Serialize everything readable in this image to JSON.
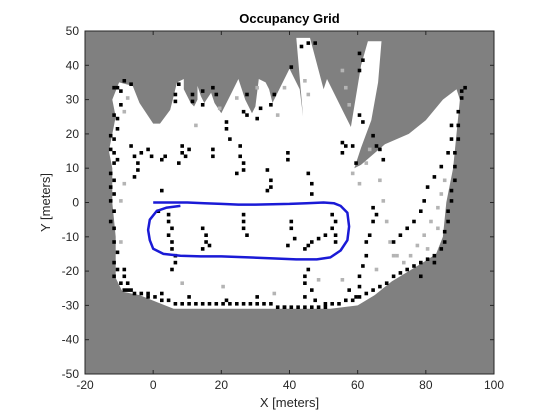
{
  "chart_data": {
    "type": "heatmap",
    "title": "Occupancy Grid",
    "xlabel": "X [meters]",
    "ylabel": "Y [meters]",
    "xlim": [
      -20,
      100
    ],
    "ylim": [
      -50,
      50
    ],
    "xticks": [
      -20,
      0,
      20,
      40,
      60,
      80,
      100
    ],
    "yticks": [
      -50,
      -40,
      -30,
      -20,
      -10,
      0,
      10,
      20,
      30,
      40,
      50
    ],
    "grid": false,
    "legend": "none",
    "colors": {
      "unknown": "#808080",
      "free": "#ffffff",
      "occupied": "#000000",
      "partial": "#b4b4b4",
      "path": "#1a1ad6",
      "axis": "#262626"
    },
    "free_space_boundary": [
      [
        -10,
        35
      ],
      [
        -6,
        34
      ],
      [
        -4,
        29
      ],
      [
        -2,
        26
      ],
      [
        0,
        23
      ],
      [
        2,
        23
      ],
      [
        5,
        27
      ],
      [
        6,
        31
      ],
      [
        7,
        35
      ],
      [
        9,
        36
      ],
      [
        9,
        33
      ],
      [
        11,
        29
      ],
      [
        12,
        28
      ],
      [
        13,
        30
      ],
      [
        13,
        34
      ],
      [
        14,
        31
      ],
      [
        15,
        29
      ],
      [
        17,
        32
      ],
      [
        18,
        29
      ],
      [
        20,
        26
      ],
      [
        23,
        32
      ],
      [
        25,
        36
      ],
      [
        27,
        30
      ],
      [
        29,
        26
      ],
      [
        30,
        28
      ],
      [
        31,
        36
      ],
      [
        33,
        35
      ],
      [
        34,
        33
      ],
      [
        35,
        29
      ],
      [
        37,
        33
      ],
      [
        40,
        39
      ],
      [
        43,
        33
      ],
      [
        44,
        25
      ],
      [
        42,
        48
      ],
      [
        46,
        48
      ],
      [
        50,
        33
      ],
      [
        51,
        36
      ],
      [
        56,
        26
      ],
      [
        58,
        22
      ],
      [
        61,
        40
      ],
      [
        63,
        47
      ],
      [
        67,
        47
      ],
      [
        66,
        35
      ],
      [
        64,
        24
      ],
      [
        61,
        16
      ],
      [
        59,
        10
      ],
      [
        61,
        11
      ],
      [
        68,
        17
      ],
      [
        75,
        20
      ],
      [
        80,
        24
      ],
      [
        85,
        30
      ],
      [
        89,
        33
      ],
      [
        90,
        30
      ],
      [
        88,
        10
      ],
      [
        86,
        0
      ],
      [
        85,
        -10
      ],
      [
        83,
        -15
      ],
      [
        80,
        -17
      ],
      [
        75,
        -20
      ],
      [
        70,
        -23
      ],
      [
        65,
        -27
      ],
      [
        60,
        -30
      ],
      [
        52,
        -31
      ],
      [
        45,
        -31
      ],
      [
        38,
        -31
      ],
      [
        32,
        -31
      ],
      [
        25,
        -31
      ],
      [
        18,
        -31
      ],
      [
        12,
        -31
      ],
      [
        6,
        -31
      ],
      [
        1,
        -29
      ],
      [
        -4,
        -27
      ],
      [
        -9,
        -26
      ],
      [
        -11,
        -22
      ],
      [
        -11,
        -10
      ],
      [
        -12,
        0
      ],
      [
        -12,
        10
      ],
      [
        -13,
        15
      ],
      [
        -12,
        20
      ],
      [
        -11,
        25
      ],
      [
        -12,
        30
      ]
    ],
    "occupied_cells": [
      [
        -12,
        33
      ],
      [
        -11,
        33
      ],
      [
        -10,
        32
      ],
      [
        -9,
        35
      ],
      [
        -7,
        34
      ],
      [
        -12,
        25
      ],
      [
        -11,
        24
      ],
      [
        -13,
        19
      ],
      [
        -12,
        18
      ],
      [
        -13,
        15
      ],
      [
        -12,
        14
      ],
      [
        -11,
        12
      ],
      [
        -13,
        8
      ],
      [
        -12,
        6
      ],
      [
        -13,
        4
      ],
      [
        -12,
        2
      ],
      [
        -13,
        0
      ],
      [
        -12,
        -3
      ],
      [
        -13,
        -6
      ],
      [
        -12,
        -8
      ],
      [
        -12,
        -12
      ],
      [
        -11,
        -15
      ],
      [
        -12,
        -18
      ],
      [
        -11,
        -20
      ],
      [
        -12,
        -22
      ],
      [
        -10,
        -24
      ],
      [
        -9,
        -26
      ],
      [
        -8,
        -26
      ],
      [
        -6,
        -27
      ],
      [
        -4,
        -27
      ],
      [
        -2,
        -28
      ],
      [
        0,
        -28
      ],
      [
        2,
        -29
      ],
      [
        4,
        -29
      ],
      [
        6,
        -30
      ],
      [
        8,
        -30
      ],
      [
        10,
        -30
      ],
      [
        12,
        -30
      ],
      [
        14,
        -30
      ],
      [
        16,
        -30
      ],
      [
        18,
        -30
      ],
      [
        20,
        -30
      ],
      [
        22,
        -30
      ],
      [
        24,
        -30
      ],
      [
        26,
        -30
      ],
      [
        28,
        -30
      ],
      [
        30,
        -30
      ],
      [
        32,
        -30
      ],
      [
        34,
        -30
      ],
      [
        36,
        -31
      ],
      [
        38,
        -31
      ],
      [
        40,
        -31
      ],
      [
        42,
        -31
      ],
      [
        44,
        -31
      ],
      [
        46,
        -31
      ],
      [
        48,
        -31
      ],
      [
        50,
        -30
      ],
      [
        52,
        -30
      ],
      [
        54,
        -30
      ],
      [
        56,
        -29
      ],
      [
        58,
        -29
      ],
      [
        60,
        -28
      ],
      [
        62,
        -27
      ],
      [
        64,
        -26
      ],
      [
        66,
        -25
      ],
      [
        68,
        -24
      ],
      [
        70,
        -22
      ],
      [
        72,
        -21
      ],
      [
        74,
        -20
      ],
      [
        76,
        -19
      ],
      [
        78,
        -18
      ],
      [
        80,
        -17
      ],
      [
        82,
        -16
      ],
      [
        84,
        -14
      ],
      [
        85,
        -12
      ],
      [
        85,
        -9
      ],
      [
        86,
        -6
      ],
      [
        86,
        -3
      ],
      [
        87,
        0
      ],
      [
        87,
        3
      ],
      [
        88,
        6
      ],
      [
        88,
        10
      ],
      [
        88,
        14
      ],
      [
        89,
        18
      ],
      [
        89,
        22
      ],
      [
        89,
        26
      ],
      [
        90,
        30
      ],
      [
        90,
        32
      ],
      [
        91,
        33
      ],
      [
        6,
        29
      ],
      [
        6,
        31
      ],
      [
        7,
        34
      ],
      [
        11,
        31
      ],
      [
        11,
        29
      ],
      [
        14,
        32
      ],
      [
        14,
        28
      ],
      [
        17,
        33
      ],
      [
        18,
        31
      ],
      [
        21,
        23
      ],
      [
        21,
        21
      ],
      [
        22,
        18
      ],
      [
        27,
        31
      ],
      [
        27,
        25
      ],
      [
        26,
        26
      ],
      [
        30,
        24
      ],
      [
        31,
        27
      ],
      [
        35,
        31
      ],
      [
        34,
        28
      ],
      [
        40,
        39
      ],
      [
        43,
        45
      ],
      [
        45,
        46
      ],
      [
        47,
        46
      ],
      [
        60,
        43
      ],
      [
        61,
        41
      ],
      [
        60,
        38
      ],
      [
        60,
        25
      ],
      [
        61,
        23
      ],
      [
        64,
        19
      ],
      [
        65,
        16
      ],
      [
        66,
        15
      ],
      [
        67,
        12
      ],
      [
        59,
        11
      ],
      [
        58,
        16
      ],
      [
        8,
        16
      ],
      [
        8,
        14
      ],
      [
        9,
        13
      ],
      [
        10,
        15
      ],
      [
        7,
        11
      ],
      [
        -7,
        16
      ],
      [
        -6,
        13
      ],
      [
        -5,
        11
      ],
      [
        -4,
        14
      ],
      [
        -2,
        15
      ],
      [
        -1,
        13
      ],
      [
        -5,
        9
      ],
      [
        -6,
        7
      ],
      [
        2,
        12
      ],
      [
        3,
        13
      ],
      [
        17,
        15
      ],
      [
        17,
        13
      ],
      [
        25,
        16
      ],
      [
        25,
        13
      ],
      [
        26,
        11
      ],
      [
        26,
        9
      ],
      [
        24,
        8
      ],
      [
        33,
        9
      ],
      [
        34,
        6
      ],
      [
        34,
        4
      ],
      [
        33,
        3
      ],
      [
        39,
        14
      ],
      [
        39,
        12
      ],
      [
        55,
        17
      ],
      [
        55,
        14
      ],
      [
        56,
        16
      ],
      [
        45,
        8
      ],
      [
        46,
        5
      ],
      [
        46,
        2
      ],
      [
        4,
        -4
      ],
      [
        4,
        -6
      ],
      [
        5,
        -8
      ],
      [
        4,
        -10
      ],
      [
        5,
        -12
      ],
      [
        5,
        -14
      ],
      [
        6,
        -16
      ],
      [
        6,
        -18
      ],
      [
        5,
        -20
      ],
      [
        14,
        -8
      ],
      [
        15,
        -10
      ],
      [
        15,
        -12
      ],
      [
        14,
        -14
      ],
      [
        16,
        -13
      ],
      [
        26,
        -4
      ],
      [
        26,
        -6
      ],
      [
        26,
        -8
      ],
      [
        27,
        -10
      ],
      [
        40,
        -6
      ],
      [
        40,
        -8
      ],
      [
        41,
        -11
      ],
      [
        39,
        -13
      ],
      [
        44,
        -14
      ],
      [
        45,
        -13
      ],
      [
        46,
        -12
      ],
      [
        48,
        -11
      ],
      [
        50,
        -10
      ],
      [
        52,
        -4
      ],
      [
        53,
        -6
      ],
      [
        52,
        -8
      ],
      [
        53,
        -10
      ],
      [
        53,
        -12
      ],
      [
        44,
        -28
      ],
      [
        44,
        -24
      ],
      [
        44,
        -22
      ],
      [
        45,
        -20
      ],
      [
        -9,
        -20
      ],
      [
        -9,
        -22
      ],
      [
        -8,
        -24
      ],
      [
        -7,
        -26
      ],
      [
        -2,
        -27
      ],
      [
        2,
        -27
      ],
      [
        64,
        -2
      ],
      [
        65,
        -4
      ],
      [
        64,
        -6
      ],
      [
        63,
        -10
      ],
      [
        62,
        -12
      ],
      [
        62,
        -16
      ],
      [
        61,
        -19
      ],
      [
        60,
        -22
      ],
      [
        60,
        -25
      ],
      [
        59,
        -28
      ],
      [
        70,
        -12
      ],
      [
        72,
        -10
      ],
      [
        74,
        -8
      ],
      [
        76,
        -6
      ],
      [
        78,
        -3
      ],
      [
        79,
        0
      ],
      [
        80,
        4
      ],
      [
        82,
        7
      ],
      [
        84,
        10
      ],
      [
        86,
        14
      ],
      [
        87,
        18
      ],
      [
        87,
        22
      ],
      [
        38,
        -31
      ],
      [
        50,
        -31
      ],
      [
        -10,
        28
      ],
      [
        -11,
        21
      ],
      [
        -12,
        11
      ],
      [
        2,
        3
      ],
      [
        1,
        -3
      ],
      [
        78,
        -22
      ],
      [
        82,
        -18
      ],
      [
        57,
        -26
      ],
      [
        46,
        -26
      ],
      [
        47,
        -29
      ],
      [
        30,
        -28
      ],
      [
        21,
        -29
      ],
      [
        10,
        -28
      ]
    ],
    "partial_cells": [
      [
        55,
        38
      ],
      [
        56,
        33
      ],
      [
        57,
        28
      ],
      [
        63,
        15
      ],
      [
        62,
        11
      ],
      [
        44,
        35
      ],
      [
        45,
        31
      ],
      [
        66,
        6
      ],
      [
        67,
        0
      ],
      [
        68,
        -6
      ],
      [
        69,
        -12
      ],
      [
        71,
        -16
      ],
      [
        73,
        -18
      ],
      [
        75,
        -16
      ],
      [
        77,
        -13
      ],
      [
        79,
        -10
      ],
      [
        81,
        -6
      ],
      [
        83,
        -2
      ],
      [
        84,
        2
      ],
      [
        85,
        6
      ],
      [
        60,
        5
      ],
      [
        58,
        8
      ],
      [
        -8,
        30
      ],
      [
        -9,
        26
      ],
      [
        12,
        22
      ],
      [
        19,
        27
      ],
      [
        24,
        30
      ],
      [
        30,
        33
      ],
      [
        36,
        25
      ],
      [
        38,
        33
      ],
      [
        -10,
        0
      ],
      [
        -10,
        -12
      ],
      [
        -9,
        5
      ],
      [
        20,
        -25
      ],
      [
        35,
        -27
      ],
      [
        8,
        -24
      ],
      [
        48,
        -23
      ],
      [
        55,
        -23
      ],
      [
        65,
        -20
      ],
      [
        70,
        -16
      ],
      [
        80,
        -14
      ],
      [
        83,
        -8
      ]
    ],
    "series": [
      {
        "type": "line",
        "color": "#1a1ad6",
        "x": [
          0,
          5,
          10,
          15,
          20,
          25,
          30,
          35,
          40,
          45,
          50,
          53,
          55,
          57,
          57.5,
          57,
          55,
          52,
          48,
          42,
          35,
          28,
          20,
          14,
          8,
          3,
          0,
          -1,
          -1.5,
          -1,
          1,
          4,
          8
        ],
        "y": [
          0,
          0,
          0,
          -0.2,
          -0.4,
          -0.6,
          -0.6,
          -0.5,
          -0.4,
          -0.2,
          0,
          -0.2,
          -1,
          -3,
          -7,
          -11,
          -14,
          -16,
          -16.6,
          -16.6,
          -16.3,
          -16,
          -15.7,
          -15.7,
          -15.5,
          -15,
          -13.5,
          -11,
          -8,
          -5,
          -2.5,
          -1.5,
          -1
        ]
      }
    ]
  }
}
